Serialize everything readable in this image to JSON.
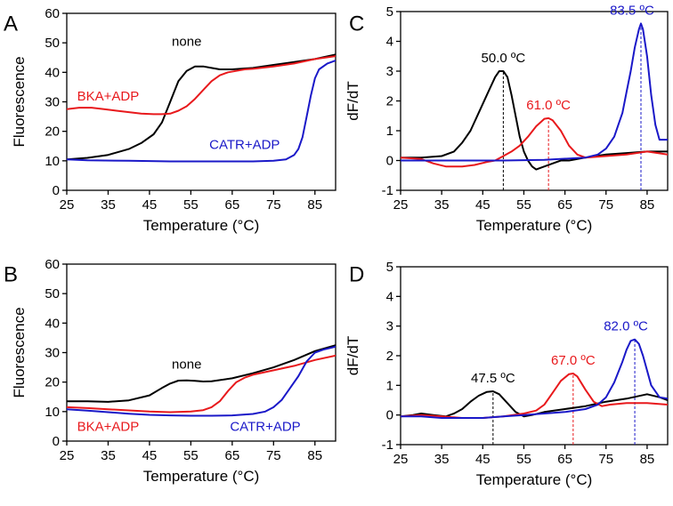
{
  "colors": {
    "none": "#000000",
    "bka": "#e8191c",
    "catr": "#1a18c8"
  },
  "chart_data": [
    {
      "panel": "A",
      "type": "line",
      "xlabel": "Temperature (°C)",
      "ylabel": "Fluorescence",
      "xlim": [
        25,
        90
      ],
      "ylim": [
        0,
        60
      ],
      "xticks": [
        25,
        35,
        45,
        55,
        65,
        75,
        85
      ],
      "yticks": [
        0,
        10,
        20,
        30,
        40,
        50,
        60
      ],
      "series": [
        {
          "name": "none",
          "color": "#000000",
          "x": [
            25,
            30,
            35,
            40,
            43,
            46,
            48,
            50,
            52,
            54,
            56,
            58,
            60,
            62,
            65,
            70,
            75,
            80,
            85,
            90
          ],
          "y": [
            10.5,
            11,
            12,
            14,
            16,
            19,
            23,
            30,
            37,
            40.5,
            42,
            42,
            41.5,
            41,
            41,
            41.5,
            42.5,
            43.5,
            44.5,
            46
          ]
        },
        {
          "name": "BKA+ADP",
          "color": "#e8191c",
          "x": [
            25,
            28,
            31,
            34,
            37,
            40,
            43,
            46,
            48,
            50,
            52,
            54,
            56,
            58,
            60,
            62,
            64,
            66,
            68,
            70,
            75,
            80,
            85,
            90
          ],
          "y": [
            27.5,
            28,
            28,
            27.5,
            27,
            26.5,
            26,
            25.8,
            25.8,
            26,
            27,
            28.5,
            31,
            34,
            37,
            39,
            40,
            40.5,
            41,
            41.2,
            42,
            43,
            44.5,
            45.5
          ]
        },
        {
          "name": "CATR+ADP",
          "color": "#1a18c8",
          "x": [
            25,
            30,
            40,
            50,
            60,
            70,
            75,
            78,
            80,
            81,
            82,
            83,
            84,
            85,
            86,
            88,
            90
          ],
          "y": [
            10.5,
            10.2,
            10,
            9.8,
            9.8,
            9.8,
            10,
            10.5,
            12,
            14,
            18,
            25,
            32,
            38,
            41,
            43,
            44
          ]
        }
      ],
      "annotations": [
        {
          "text": "none",
          "x": 54,
          "y": 49,
          "color": "#000000"
        },
        {
          "text": "BKA+ADP",
          "x": 35,
          "y": 30.5,
          "color": "#e8191c"
        },
        {
          "text": "CATR+ADP",
          "x": 68,
          "y": 14,
          "color": "#1a18c8"
        }
      ]
    },
    {
      "panel": "B",
      "type": "line",
      "xlabel": "Temperature (°C)",
      "ylabel": "Fluorescence",
      "xlim": [
        25,
        90
      ],
      "ylim": [
        0,
        60
      ],
      "xticks": [
        25,
        35,
        45,
        55,
        65,
        75,
        85
      ],
      "yticks": [
        0,
        10,
        20,
        30,
        40,
        50,
        60
      ],
      "series": [
        {
          "name": "none",
          "color": "#000000",
          "x": [
            25,
            30,
            35,
            40,
            45,
            48,
            50,
            52,
            54,
            56,
            58,
            60,
            65,
            70,
            75,
            80,
            85,
            90
          ],
          "y": [
            13.5,
            13.5,
            13.3,
            13.8,
            15.5,
            18,
            19.5,
            20.5,
            20.6,
            20.4,
            20.2,
            20.3,
            21.3,
            23,
            25,
            27.5,
            30.5,
            32.5
          ]
        },
        {
          "name": "BKA+ADP",
          "color": "#e8191c",
          "x": [
            25,
            30,
            35,
            40,
            45,
            50,
            55,
            58,
            60,
            62,
            64,
            66,
            68,
            70,
            75,
            80,
            85,
            90
          ],
          "y": [
            11.5,
            11.2,
            10.8,
            10.4,
            10,
            9.8,
            10,
            10.5,
            11.5,
            13.5,
            17,
            20,
            21.5,
            22.5,
            24,
            25.5,
            27.5,
            29
          ]
        },
        {
          "name": "CATR+ADP",
          "color": "#1a18c8",
          "x": [
            25,
            30,
            35,
            40,
            45,
            50,
            55,
            60,
            65,
            70,
            73,
            75,
            77,
            79,
            81,
            83,
            85,
            87,
            90
          ],
          "y": [
            10.8,
            10.3,
            9.8,
            9.3,
            8.9,
            8.7,
            8.6,
            8.6,
            8.7,
            9.2,
            10,
            11.5,
            14,
            18,
            22,
            27,
            30,
            31,
            32
          ]
        }
      ],
      "annotations": [
        {
          "text": "none",
          "x": 54,
          "y": 24.5,
          "color": "#000000"
        },
        {
          "text": "BKA+ADP",
          "x": 35,
          "y": 3.5,
          "color": "#e8191c"
        },
        {
          "text": "CATR+ADP",
          "x": 73,
          "y": 3.5,
          "color": "#1a18c8"
        }
      ]
    },
    {
      "panel": "C",
      "type": "line",
      "xlabel": "Temperature (°C)",
      "ylabel": "dF/dT",
      "xlim": [
        25,
        90
      ],
      "ylim": [
        -1,
        5
      ],
      "xticks": [
        25,
        35,
        45,
        55,
        65,
        75,
        85
      ],
      "yticks": [
        -1,
        0,
        1,
        2,
        3,
        4,
        5
      ],
      "series": [
        {
          "name": "none",
          "color": "#000000",
          "x": [
            25,
            30,
            35,
            38,
            40,
            42,
            44,
            46,
            48,
            49,
            50,
            51,
            52,
            53,
            54,
            55,
            56,
            57,
            58,
            60,
            62,
            64,
            66,
            70,
            75,
            80,
            85,
            90
          ],
          "y": [
            0.1,
            0.1,
            0.15,
            0.3,
            0.6,
            1.0,
            1.6,
            2.2,
            2.8,
            3.0,
            3.0,
            2.8,
            2.2,
            1.5,
            0.8,
            0.3,
            0.0,
            -0.2,
            -0.3,
            -0.2,
            -0.1,
            0,
            0,
            0.1,
            0.2,
            0.25,
            0.3,
            0.3
          ]
        },
        {
          "name": "BKA+ADP",
          "color": "#e8191c",
          "x": [
            25,
            30,
            33,
            36,
            40,
            43,
            46,
            48,
            50,
            52,
            54,
            56,
            58,
            60,
            61,
            62,
            64,
            66,
            68,
            70,
            75,
            80,
            85,
            90
          ],
          "y": [
            0.1,
            0.05,
            -0.1,
            -0.2,
            -0.2,
            -0.15,
            -0.05,
            0,
            0.15,
            0.3,
            0.5,
            0.8,
            1.15,
            1.4,
            1.42,
            1.35,
            1.0,
            0.5,
            0.2,
            0.1,
            0.15,
            0.2,
            0.3,
            0.2
          ]
        },
        {
          "name": "CATR+ADP",
          "color": "#1a18c8",
          "x": [
            25,
            30,
            40,
            50,
            60,
            70,
            73,
            75,
            77,
            79,
            80,
            81,
            82,
            83,
            83.5,
            84,
            85,
            86,
            87,
            88,
            90
          ],
          "y": [
            0,
            0,
            0,
            0,
            0.02,
            0.1,
            0.2,
            0.4,
            0.8,
            1.6,
            2.3,
            3.0,
            3.8,
            4.4,
            4.6,
            4.4,
            3.5,
            2.2,
            1.2,
            0.7,
            0.7
          ]
        }
      ],
      "peaks": [
        {
          "label": "50.0 ºC",
          "x": 50.0,
          "y": 3.0,
          "color": "#000000"
        },
        {
          "label": "61.0 ºC",
          "x": 61.0,
          "y": 1.42,
          "color": "#e8191c"
        },
        {
          "label": "83.5 ºC",
          "x": 83.5,
          "y": 4.6,
          "color": "#1a18c8"
        }
      ]
    },
    {
      "panel": "D",
      "type": "line",
      "xlabel": "Temperature (°C)",
      "ylabel": "dF/dT",
      "xlim": [
        25,
        90
      ],
      "ylim": [
        -1,
        5
      ],
      "xticks": [
        25,
        35,
        45,
        55,
        65,
        75,
        85
      ],
      "yticks": [
        -1,
        0,
        1,
        2,
        3,
        4,
        5
      ],
      "series": [
        {
          "name": "none",
          "color": "#000000",
          "x": [
            25,
            28,
            30,
            33,
            36,
            38,
            40,
            42,
            44,
            46,
            47.5,
            49,
            51,
            53,
            55,
            57,
            60,
            65,
            70,
            75,
            80,
            85,
            88,
            90
          ],
          "y": [
            -0.05,
            0,
            0.05,
            0,
            -0.05,
            0.05,
            0.2,
            0.45,
            0.65,
            0.78,
            0.8,
            0.7,
            0.4,
            0.1,
            -0.05,
            0,
            0.1,
            0.2,
            0.3,
            0.45,
            0.55,
            0.7,
            0.6,
            0.5
          ]
        },
        {
          "name": "BKA+ADP",
          "color": "#e8191c",
          "x": [
            25,
            30,
            35,
            40,
            45,
            50,
            55,
            58,
            60,
            62,
            64,
            66,
            67,
            68,
            70,
            72,
            74,
            76,
            80,
            85,
            90
          ],
          "y": [
            -0.05,
            0,
            -0.05,
            -0.1,
            -0.1,
            -0.05,
            0.05,
            0.15,
            0.35,
            0.75,
            1.15,
            1.38,
            1.4,
            1.3,
            0.85,
            0.45,
            0.3,
            0.35,
            0.4,
            0.4,
            0.35
          ]
        },
        {
          "name": "CATR+ADP",
          "color": "#1a18c8",
          "x": [
            25,
            30,
            35,
            40,
            45,
            50,
            55,
            60,
            65,
            70,
            73,
            75,
            77,
            79,
            80,
            81,
            82,
            83,
            84,
            85,
            86,
            88,
            90
          ],
          "y": [
            -0.05,
            -0.05,
            -0.1,
            -0.1,
            -0.1,
            -0.05,
            0,
            0.05,
            0.1,
            0.2,
            0.35,
            0.6,
            1.1,
            1.8,
            2.2,
            2.5,
            2.55,
            2.4,
            2.0,
            1.5,
            1.0,
            0.6,
            0.55
          ]
        }
      ],
      "peaks": [
        {
          "label": "47.5 ºC",
          "x": 47.5,
          "y": 0.8,
          "color": "#000000"
        },
        {
          "label": "67.0 ºC",
          "x": 67.0,
          "y": 1.4,
          "color": "#e8191c"
        },
        {
          "label": "82.0 ºC",
          "x": 82.0,
          "y": 2.55,
          "color": "#1a18c8"
        }
      ]
    }
  ]
}
